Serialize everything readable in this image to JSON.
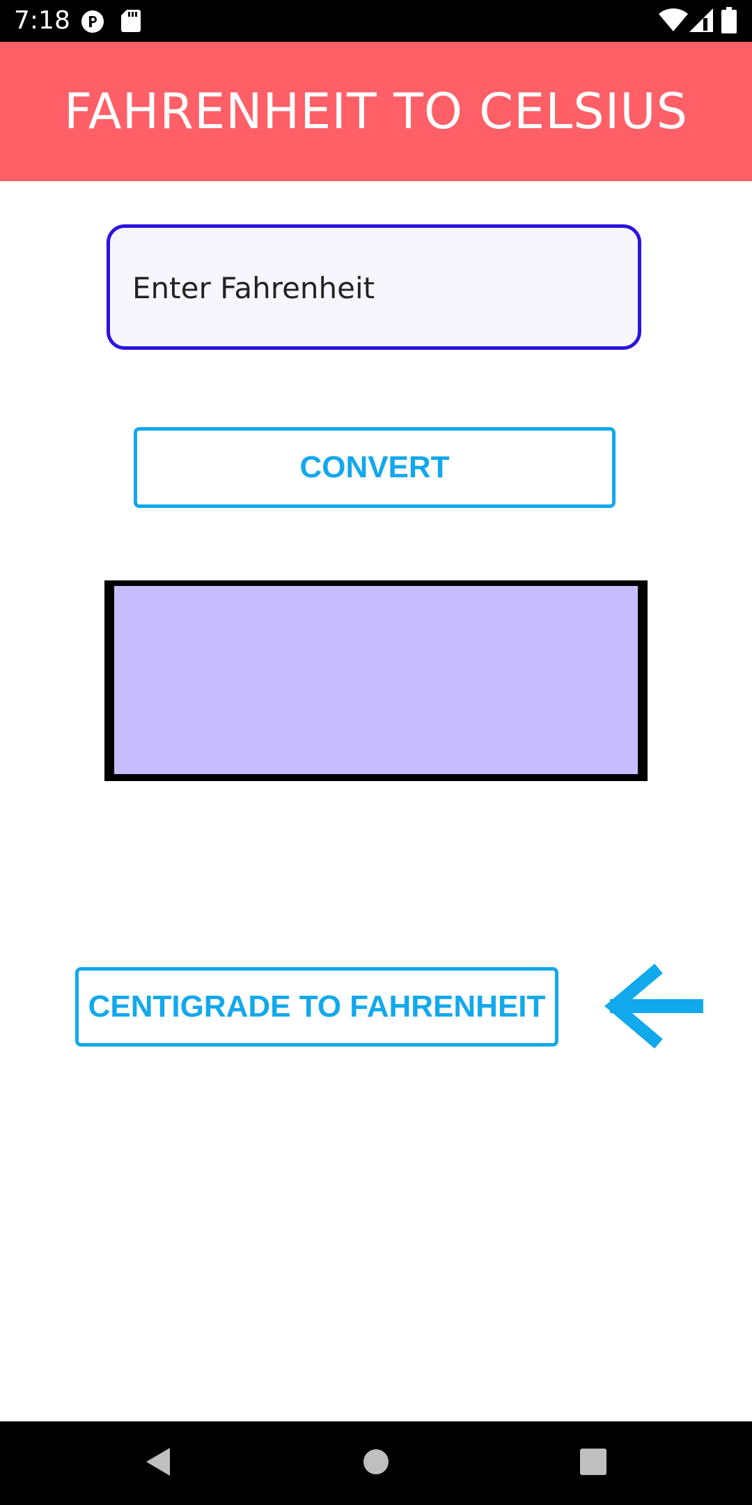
{
  "status_bar": {
    "time": "7:18",
    "left_icons": [
      "app-notification-icon",
      "sd-card-icon"
    ],
    "right_icons": [
      "wifi-icon",
      "cell-signal-icon",
      "battery-icon"
    ]
  },
  "app_bar": {
    "title": "FAHRENHEIT TO CELSIUS",
    "color": "#FF5F67"
  },
  "input": {
    "value": "",
    "placeholder": "Enter Fahrenheit"
  },
  "buttons": {
    "convert_label": "CONVERT",
    "switch_label": "CENTIGRADE TO FAHRENHEIT"
  },
  "result": {
    "text": ""
  },
  "icons": {
    "switch_arrow": "arrow-left-icon"
  },
  "nav_bar": {
    "buttons": [
      "back-icon",
      "home-icon",
      "recents-icon"
    ]
  },
  "colors": {
    "accent": "#12A8EC",
    "input_border": "#2A14DF",
    "result_fill": "#C8BEFF"
  }
}
